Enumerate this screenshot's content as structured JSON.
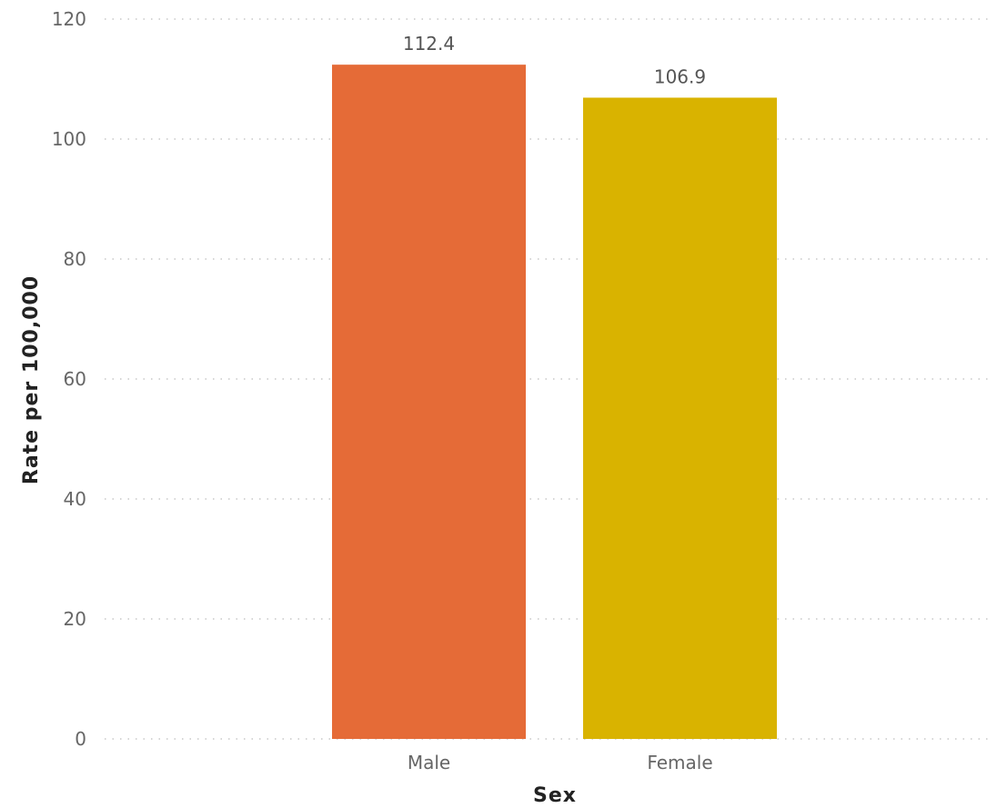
{
  "chart_data": {
    "type": "bar",
    "categories": [
      "Male",
      "Female"
    ],
    "values": [
      112.4,
      106.9
    ],
    "data_labels": [
      "112.4",
      "106.9"
    ],
    "colors": [
      "#E56B37",
      "#D9B300"
    ],
    "xlabel": "Sex",
    "ylabel": "Rate per 100,000",
    "ylim": [
      0,
      120
    ],
    "yticks": [
      0,
      20,
      40,
      60,
      80,
      100,
      120
    ],
    "grid": true,
    "grid_style": "dotted"
  }
}
